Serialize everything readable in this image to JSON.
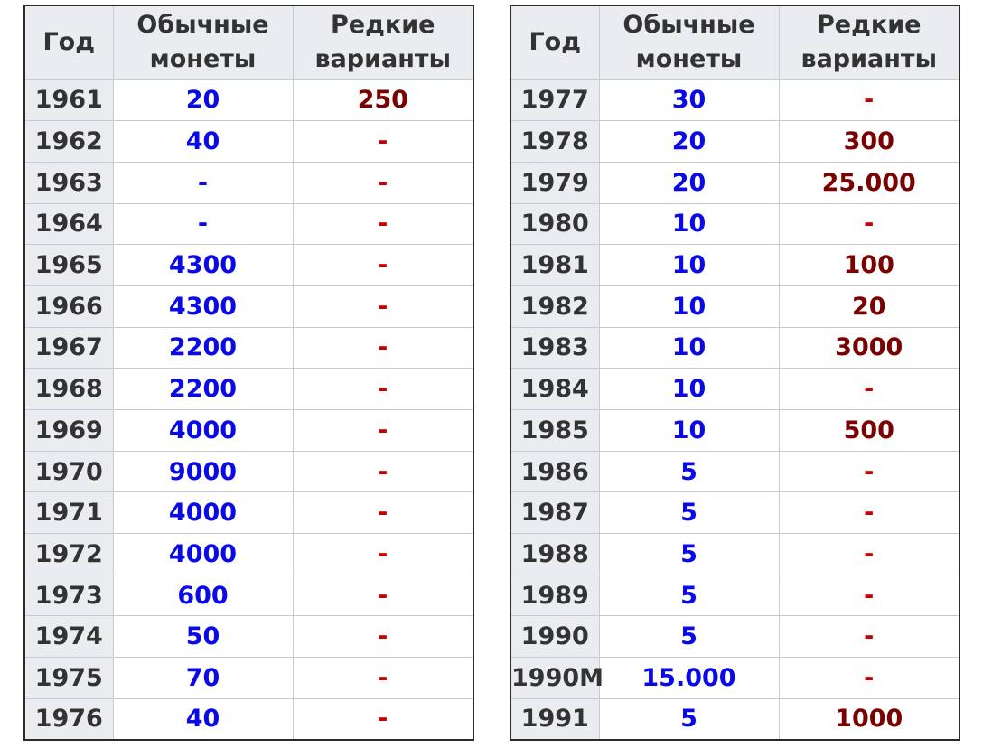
{
  "headers": {
    "year": "Год",
    "common_line1": "Обычные",
    "common_line2": "монеты",
    "rare_line1": "Редкие",
    "rare_line2": "варианты"
  },
  "colors": {
    "header_bg": "#eaecf0",
    "common_value": "#0a0ae8",
    "rare_value": "#7b0000",
    "rare_dash": "#c40000",
    "text": "#333333"
  },
  "left_rows": [
    {
      "year": "1961",
      "common": "20",
      "rare": "250"
    },
    {
      "year": "1962",
      "common": "40",
      "rare": "-"
    },
    {
      "year": "1963",
      "common": "-",
      "rare": "-"
    },
    {
      "year": "1964",
      "common": "-",
      "rare": "-"
    },
    {
      "year": "1965",
      "common": "4300",
      "rare": "-"
    },
    {
      "year": "1966",
      "common": "4300",
      "rare": "-"
    },
    {
      "year": "1967",
      "common": "2200",
      "rare": "-"
    },
    {
      "year": "1968",
      "common": "2200",
      "rare": "-"
    },
    {
      "year": "1969",
      "common": "4000",
      "rare": "-"
    },
    {
      "year": "1970",
      "common": "9000",
      "rare": "-"
    },
    {
      "year": "1971",
      "common": "4000",
      "rare": "-"
    },
    {
      "year": "1972",
      "common": "4000",
      "rare": "-"
    },
    {
      "year": "1973",
      "common": "600",
      "rare": "-"
    },
    {
      "year": "1974",
      "common": "50",
      "rare": "-"
    },
    {
      "year": "1975",
      "common": "70",
      "rare": "-"
    },
    {
      "year": "1976",
      "common": "40",
      "rare": "-"
    }
  ],
  "right_rows": [
    {
      "year": "1977",
      "common": "30",
      "rare": "-"
    },
    {
      "year": "1978",
      "common": "20",
      "rare": "300"
    },
    {
      "year": "1979",
      "common": "20",
      "rare": "25.000"
    },
    {
      "year": "1980",
      "common": "10",
      "rare": "-"
    },
    {
      "year": "1981",
      "common": "10",
      "rare": "100"
    },
    {
      "year": "1982",
      "common": "10",
      "rare": "20"
    },
    {
      "year": "1983",
      "common": "10",
      "rare": "3000"
    },
    {
      "year": "1984",
      "common": "10",
      "rare": "-"
    },
    {
      "year": "1985",
      "common": "10",
      "rare": "500"
    },
    {
      "year": "1986",
      "common": "5",
      "rare": "-"
    },
    {
      "year": "1987",
      "common": "5",
      "rare": "-"
    },
    {
      "year": "1988",
      "common": "5",
      "rare": "-"
    },
    {
      "year": "1989",
      "common": "5",
      "rare": "-"
    },
    {
      "year": "1990",
      "common": "5",
      "rare": "-"
    },
    {
      "year": "1990M",
      "common": "15.000",
      "rare": "-"
    },
    {
      "year": "1991",
      "common": "5",
      "rare": "1000"
    }
  ]
}
